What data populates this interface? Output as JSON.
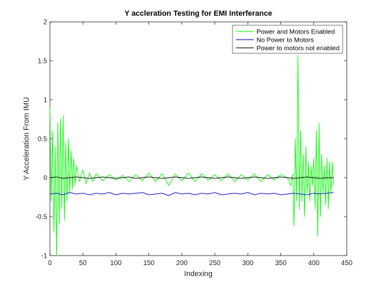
{
  "chart_data": {
    "type": "line",
    "title": "Y accleration Testing for EMI Interferance",
    "xlabel": "Indexing",
    "ylabel": "Y Acceleration From IMU",
    "xlim": [
      0,
      450
    ],
    "ylim": [
      -1,
      2
    ],
    "xticks": [
      0,
      50,
      100,
      150,
      200,
      250,
      300,
      350,
      400,
      450
    ],
    "yticks": [
      -1,
      -0.5,
      0,
      0.5,
      1,
      1.5,
      2
    ],
    "xtick_labels": [
      "0",
      "50",
      "100",
      "150",
      "200",
      "250",
      "300",
      "350",
      "400",
      "450"
    ],
    "ytick_labels": [
      "-1",
      "-0.5",
      "0",
      "0.5",
      "1",
      "1.5",
      "2"
    ],
    "grid": false,
    "legend_position": "top-right",
    "series": [
      {
        "name": "Power and Motors Enabled",
        "color": "#00ff00",
        "x": [
          0,
          2,
          4,
          6,
          8,
          10,
          12,
          14,
          16,
          18,
          20,
          22,
          24,
          26,
          28,
          30,
          32,
          34,
          36,
          38,
          40,
          45,
          50,
          55,
          60,
          65,
          70,
          80,
          90,
          100,
          110,
          120,
          130,
          140,
          150,
          160,
          170,
          180,
          190,
          200,
          210,
          220,
          230,
          240,
          250,
          260,
          270,
          280,
          290,
          300,
          310,
          320,
          330,
          340,
          350,
          360,
          365,
          368,
          370,
          372,
          374,
          376,
          378,
          380,
          382,
          384,
          386,
          388,
          390,
          392,
          394,
          396,
          398,
          400,
          402,
          404,
          406,
          408,
          410,
          412,
          414,
          416,
          418,
          420,
          422,
          424,
          426,
          428,
          430
        ],
        "values": [
          0.9,
          -0.3,
          0.6,
          -0.7,
          0.4,
          -1.0,
          0.7,
          -0.6,
          0.75,
          -0.4,
          0.8,
          -0.55,
          0.45,
          -0.3,
          0.5,
          -0.2,
          0.35,
          -0.15,
          0.25,
          -0.1,
          0.15,
          -0.05,
          0.1,
          -0.08,
          0.06,
          -0.05,
          0.05,
          -0.04,
          0.04,
          -0.03,
          0.03,
          -0.05,
          0.04,
          -0.04,
          0.06,
          -0.05,
          0.05,
          -0.1,
          0.05,
          -0.04,
          0.06,
          -0.05,
          0.05,
          -0.03,
          0.04,
          -0.04,
          0.05,
          -0.05,
          0.04,
          -0.03,
          0.05,
          -0.05,
          0.04,
          -0.03,
          0.04,
          0.0,
          -0.1,
          0.05,
          -0.62,
          0.5,
          -0.3,
          1.57,
          -0.4,
          0.6,
          -0.3,
          0.3,
          -0.5,
          0.4,
          -0.2,
          0.2,
          -0.3,
          0.15,
          -0.1,
          0.25,
          -0.4,
          0.6,
          -0.75,
          0.7,
          -0.5,
          0.3,
          -0.2,
          0.15,
          -0.35,
          0.25,
          -0.4,
          0.2,
          -0.2,
          0.2,
          -0.1
        ]
      },
      {
        "name": "No Power to Motors",
        "color": "#0000cc",
        "x": [
          0,
          10,
          20,
          30,
          40,
          50,
          60,
          70,
          80,
          90,
          100,
          110,
          120,
          130,
          140,
          150,
          160,
          170,
          180,
          190,
          200,
          210,
          220,
          230,
          240,
          250,
          260,
          270,
          280,
          290,
          300,
          310,
          320,
          330,
          340,
          350,
          360,
          370,
          380,
          390,
          400,
          410,
          420,
          430
        ],
        "values": [
          -0.21,
          -0.2,
          -0.22,
          -0.19,
          -0.21,
          -0.2,
          -0.22,
          -0.2,
          -0.21,
          -0.19,
          -0.22,
          -0.2,
          -0.21,
          -0.2,
          -0.19,
          -0.22,
          -0.21,
          -0.2,
          -0.23,
          -0.19,
          -0.21,
          -0.2,
          -0.22,
          -0.2,
          -0.21,
          -0.19,
          -0.22,
          -0.21,
          -0.2,
          -0.21,
          -0.19,
          -0.22,
          -0.2,
          -0.21,
          -0.2,
          -0.22,
          -0.21,
          -0.2,
          -0.21,
          -0.22,
          -0.2,
          -0.21,
          -0.2,
          -0.19
        ]
      },
      {
        "name": "Power to motors not enabled",
        "color": "#000000",
        "x": [
          0,
          10,
          20,
          30,
          40,
          50,
          60,
          70,
          80,
          90,
          100,
          110,
          120,
          130,
          140,
          150,
          160,
          170,
          180,
          190,
          200,
          210,
          220,
          230,
          240,
          250,
          260,
          270,
          280,
          290,
          300,
          310,
          320,
          330,
          340,
          350,
          360,
          370,
          380,
          390,
          400,
          410,
          420,
          430
        ],
        "values": [
          0.0,
          0.01,
          -0.01,
          0.0,
          0.01,
          0.0,
          -0.01,
          0.0,
          0.01,
          0.0,
          -0.01,
          0.0,
          0.01,
          -0.01,
          0.0,
          0.01,
          0.0,
          -0.01,
          0.0,
          0.01,
          0.0,
          -0.01,
          0.0,
          0.01,
          0.0,
          -0.01,
          0.0,
          0.01,
          0.0,
          -0.01,
          0.0,
          0.01,
          0.0,
          -0.01,
          0.0,
          0.01,
          0.0,
          -0.01,
          0.0,
          0.01,
          0.0,
          -0.01,
          0.0,
          0.0
        ]
      }
    ]
  }
}
